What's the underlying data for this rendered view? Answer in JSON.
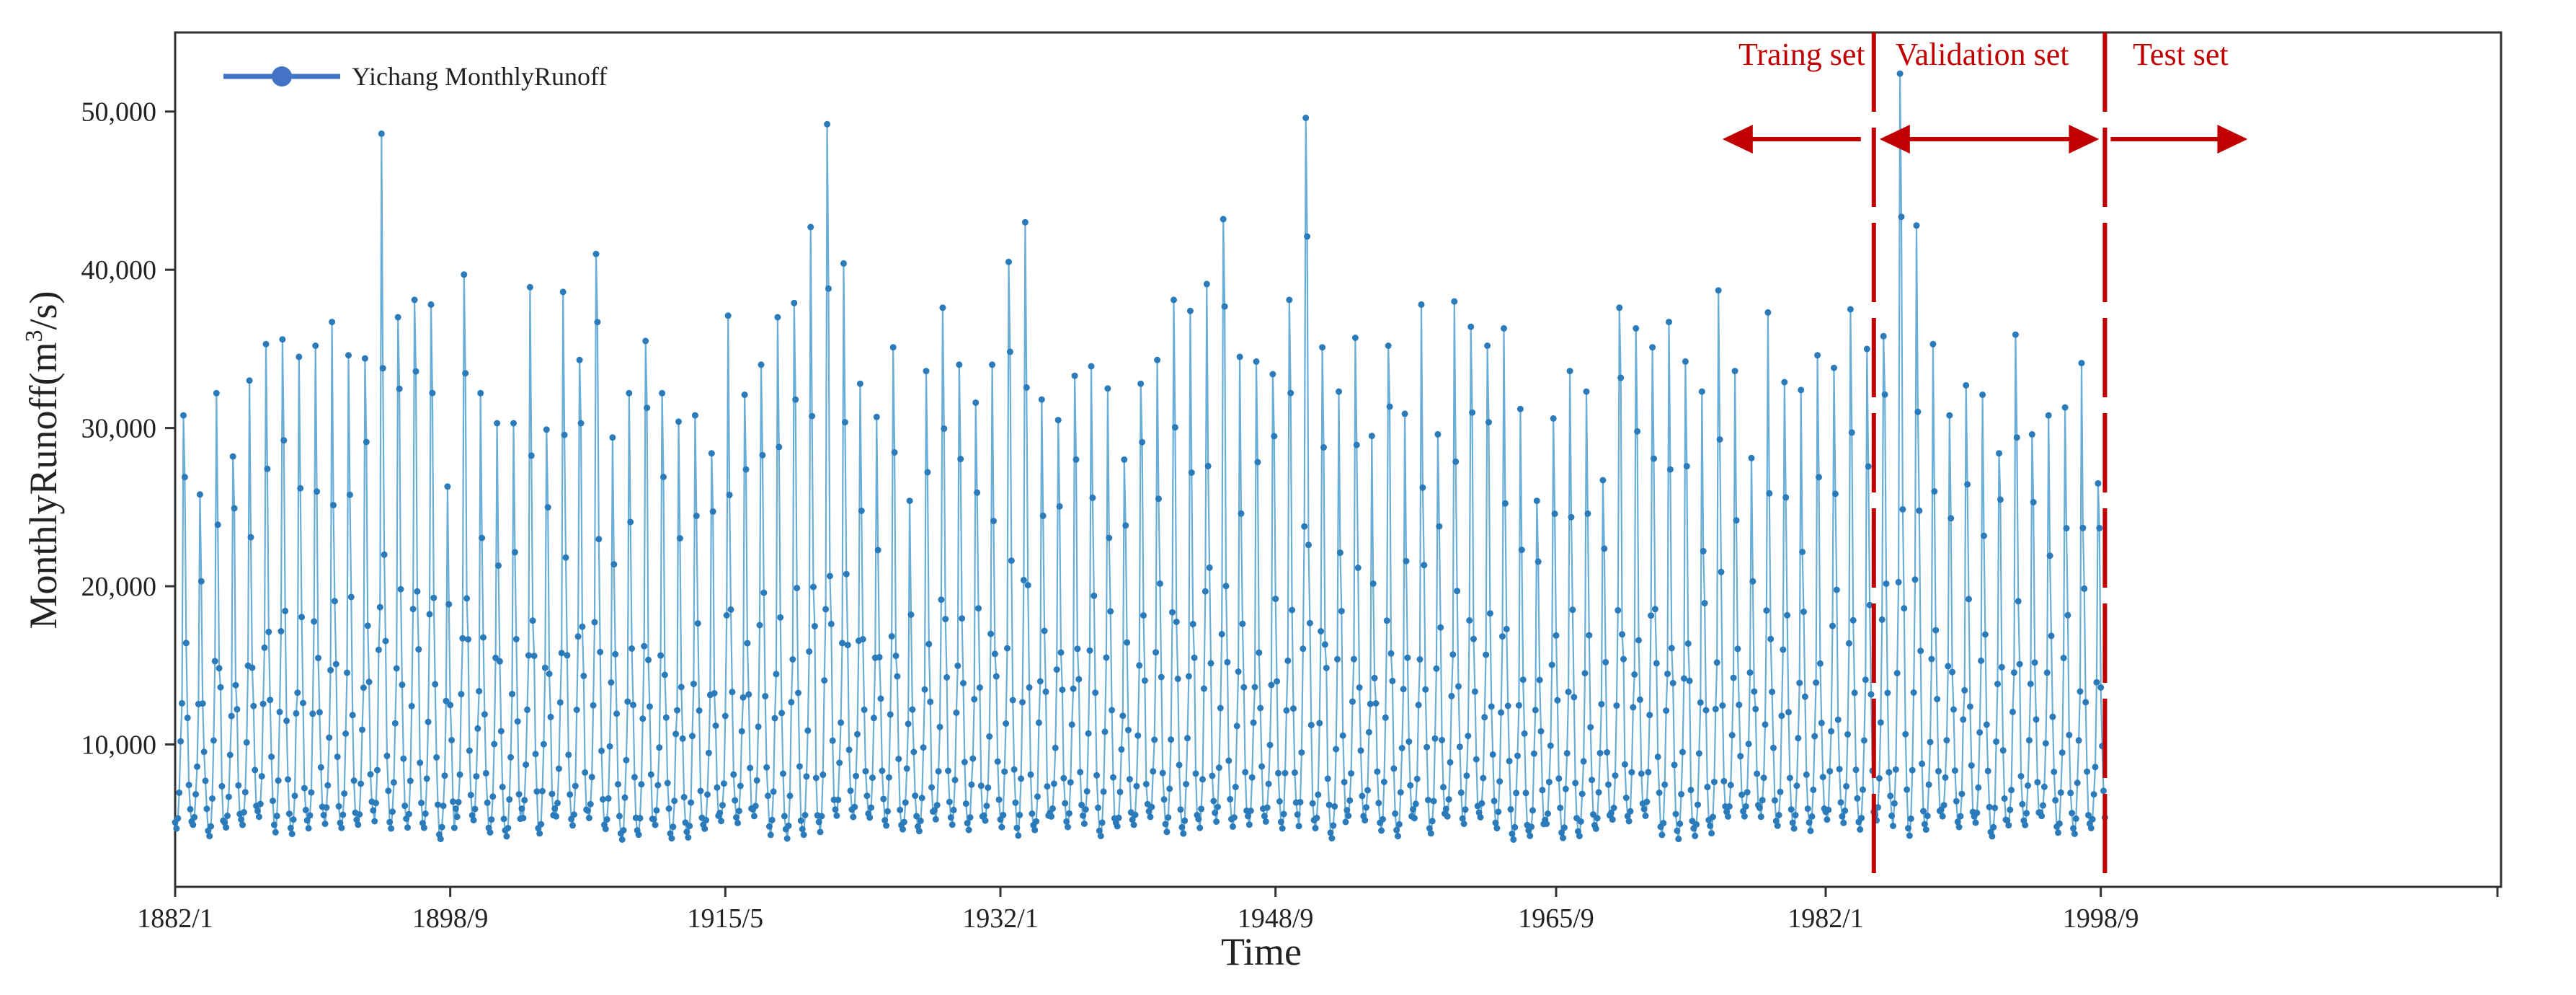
{
  "chart_data": {
    "type": "line",
    "xlabel": "Time",
    "ylabel_main": "MonthlyRunoff(m",
    "ylabel_sup": "3",
    "ylabel_tail": "/s)",
    "x_ticks": [
      "1882/1",
      "1898/9",
      "1915/5",
      "1932/1",
      "1948/9",
      "1965/9",
      "1982/1",
      "1998/9"
    ],
    "y_ticks": [
      "10,000",
      "20,000",
      "30,000",
      "40,000",
      "50,000"
    ],
    "y_tick_values": [
      10000,
      20000,
      30000,
      40000,
      50000
    ],
    "ylim": [
      1000,
      55000
    ],
    "x_range_months": [
      "1882/1",
      "2022/12"
    ],
    "series": [
      {
        "name": "Yichang MonthlyRunoff",
        "color": "#2b7bba",
        "start": "1882/1",
        "frequency": "monthly",
        "annual_peaks": [
          30800,
          25800,
          32200,
          28200,
          33000,
          35300,
          35600,
          34500,
          35200,
          36700,
          34600,
          34400,
          48600,
          37000,
          38100,
          37800,
          26300,
          39700,
          32200,
          30300,
          30300,
          38900,
          29900,
          38600,
          34300,
          41000,
          29400,
          32200,
          35500,
          32200,
          30400,
          30800,
          28400,
          37100,
          32100,
          34000,
          37000,
          37900,
          42700,
          49200,
          40400,
          32800,
          30700,
          35100,
          25400,
          33600,
          37600,
          34000,
          31600,
          34000,
          40500,
          43000,
          31800,
          30500,
          33300,
          33900,
          32500,
          28000,
          32800,
          34300,
          38100,
          37400,
          39100,
          43200,
          34500,
          34200,
          33400,
          38100,
          49600,
          35100,
          32300,
          35700,
          29500,
          35200,
          30900,
          37800,
          29600,
          38000,
          36400,
          35200,
          36300,
          31200,
          25400,
          30600,
          33600,
          32300,
          26700,
          37600,
          36300,
          35100,
          36700,
          34200,
          32300,
          38700,
          33600,
          28100,
          37300,
          32900,
          32400,
          34600,
          33800,
          37500,
          35000,
          35800,
          52400,
          42800,
          35300,
          30800,
          32700,
          32100,
          28400,
          35900,
          29600,
          30800,
          31300,
          34100,
          26500
        ],
        "base_low": 3800
      }
    ],
    "split_lines_at": [
      "1984/12",
      "1998/12"
    ],
    "split_labels": [
      "Traing set",
      "Validation set",
      "Test set"
    ],
    "split_color": "#c00000",
    "axis_color": "#333333",
    "legend_position": "top-left"
  }
}
